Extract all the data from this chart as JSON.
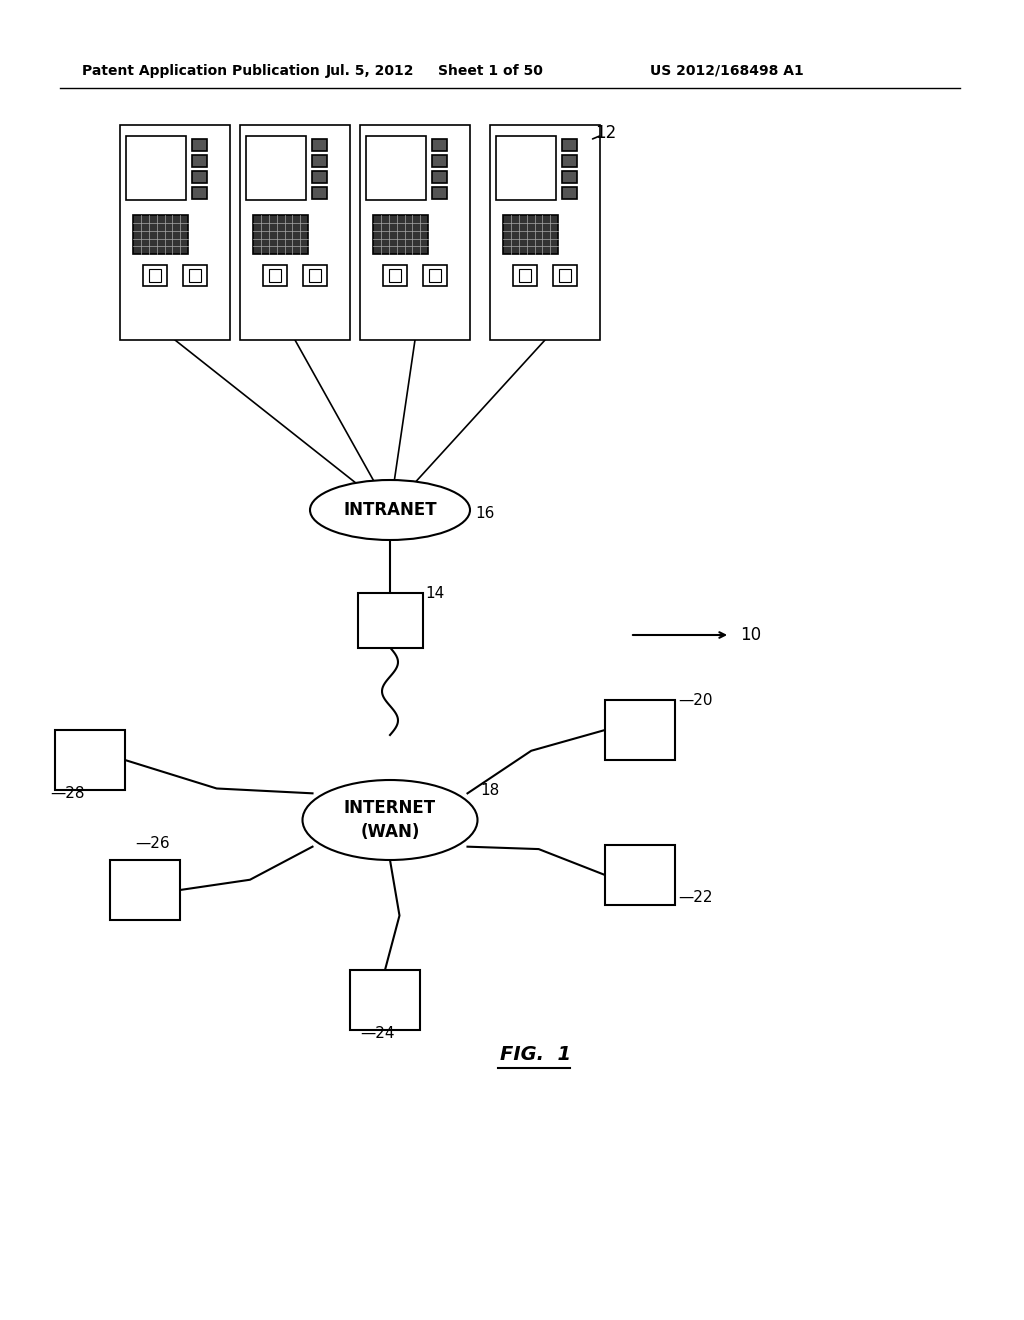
{
  "bg_color": "#ffffff",
  "header_text": "Patent Application Publication",
  "header_date": "Jul. 5, 2012",
  "header_sheet": "Sheet 1 of 50",
  "header_patent": "US 2012/168498 A1",
  "fig_label": "FIG.  1",
  "intranet_label": "INTRANET",
  "intranet_tag": "16",
  "internet_label": "INTERNET\n(WAN)",
  "internet_tag": "18",
  "gateway_tag": "14",
  "arrow_10_tag": "10",
  "node_tags": [
    "20",
    "22",
    "24",
    "26",
    "28"
  ],
  "atm_tag": "12",
  "num_atms": 4
}
